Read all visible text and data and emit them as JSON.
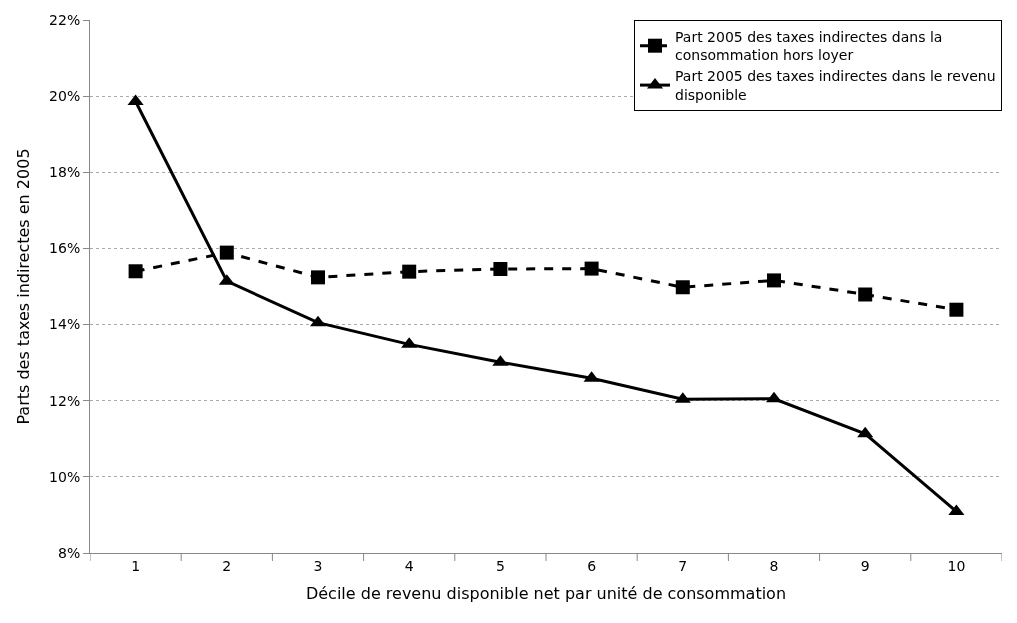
{
  "chart_data": {
    "type": "line",
    "xlabel": "Décile de revenu disponible net par unité de consommation",
    "ylabel": "Parts des taxes indirectes en 2005",
    "categories": [
      "1",
      "2",
      "3",
      "4",
      "5",
      "6",
      "7",
      "8",
      "9",
      "10"
    ],
    "series": [
      {
        "name": "Part 2005 des taxes indirectes dans la consommation hors loyer",
        "color": "#000000",
        "marker": "square",
        "line_style": "dashed",
        "values": [
          15.4,
          15.89,
          15.24,
          15.39,
          15.46,
          15.47,
          14.98,
          15.16,
          14.79,
          14.39
        ]
      },
      {
        "name": "Part 2005 des taxes indirectes dans le revenu disponible",
        "color": "#000000",
        "marker": "triangle",
        "line_style": "solid",
        "values": [
          19.86,
          15.14,
          14.05,
          13.48,
          13.01,
          12.59,
          12.04,
          12.05,
          11.13,
          9.09
        ]
      }
    ],
    "ylim": [
      8,
      22
    ],
    "yticks": [
      {
        "value": 8,
        "label": "8%"
      },
      {
        "value": 10,
        "label": "10%"
      },
      {
        "value": 12,
        "label": "12%"
      },
      {
        "value": 14,
        "label": "14%"
      },
      {
        "value": 16,
        "label": "16%"
      },
      {
        "value": 18,
        "label": "18%"
      },
      {
        "value": 20,
        "label": "20%"
      },
      {
        "value": 22,
        "label": "22%"
      }
    ],
    "grid": "y",
    "legend": "top right"
  }
}
